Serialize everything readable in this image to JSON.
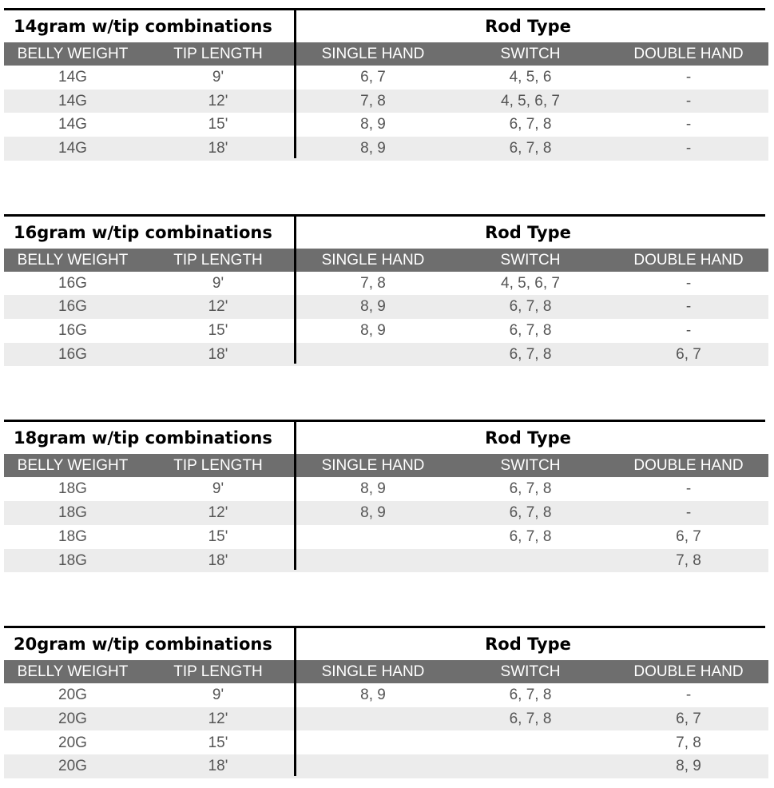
{
  "tables": [
    {
      "title": "14gram w/tip combinations",
      "group_header": "Rod Type",
      "columns": [
        "BELLY WEIGHT",
        "TIP LENGTH",
        "SINGLE HAND",
        "SWITCH",
        "DOUBLE HAND"
      ],
      "rows": [
        [
          "14G",
          "9'",
          "6, 7",
          "4, 5, 6",
          "-"
        ],
        [
          "14G",
          "12'",
          "7, 8",
          "4, 5, 6, 7",
          "-"
        ],
        [
          "14G",
          "15'",
          "8, 9",
          "6, 7, 8",
          "-"
        ],
        [
          "14G",
          "18'",
          "8, 9",
          "6, 7, 8",
          "-"
        ]
      ]
    },
    {
      "title": "16gram w/tip combinations",
      "group_header": "Rod Type",
      "columns": [
        "BELLY WEIGHT",
        "TIP LENGTH",
        "SINGLE HAND",
        "SWITCH",
        "DOUBLE HAND"
      ],
      "rows": [
        [
          "16G",
          "9'",
          "7, 8",
          "4, 5, 6, 7",
          "-"
        ],
        [
          "16G",
          "12'",
          "8, 9",
          "6, 7, 8",
          "-"
        ],
        [
          "16G",
          "15'",
          "8, 9",
          "6, 7, 8",
          "-"
        ],
        [
          "16G",
          "18'",
          null,
          "6, 7, 8",
          "6, 7"
        ]
      ]
    },
    {
      "title": "18gram w/tip combinations",
      "group_header": "Rod Type",
      "columns": [
        "BELLY WEIGHT",
        "TIP LENGTH",
        "SINGLE HAND",
        "SWITCH",
        "DOUBLE HAND"
      ],
      "rows": [
        [
          "18G",
          "9'",
          "8, 9",
          "6, 7, 8",
          "-"
        ],
        [
          "18G",
          "12'",
          "8, 9",
          "6, 7, 8",
          "-"
        ],
        [
          "18G",
          "15'",
          null,
          "6, 7, 8",
          "6, 7"
        ],
        [
          "18G",
          "18'",
          null,
          null,
          "7, 8"
        ]
      ]
    },
    {
      "title": "20gram w/tip combinations",
      "group_header": "Rod Type",
      "columns": [
        "BELLY WEIGHT",
        "TIP LENGTH",
        "SINGLE HAND",
        "SWITCH",
        "DOUBLE HAND"
      ],
      "rows": [
        [
          "20G",
          "9'",
          "8, 9",
          "6, 7, 8",
          "-"
        ],
        [
          "20G",
          "12'",
          null,
          "6, 7, 8",
          "6, 7"
        ],
        [
          "20G",
          "15'",
          null,
          null,
          "7, 8"
        ],
        [
          "20G",
          "18'",
          null,
          null,
          "8, 9"
        ]
      ]
    }
  ]
}
